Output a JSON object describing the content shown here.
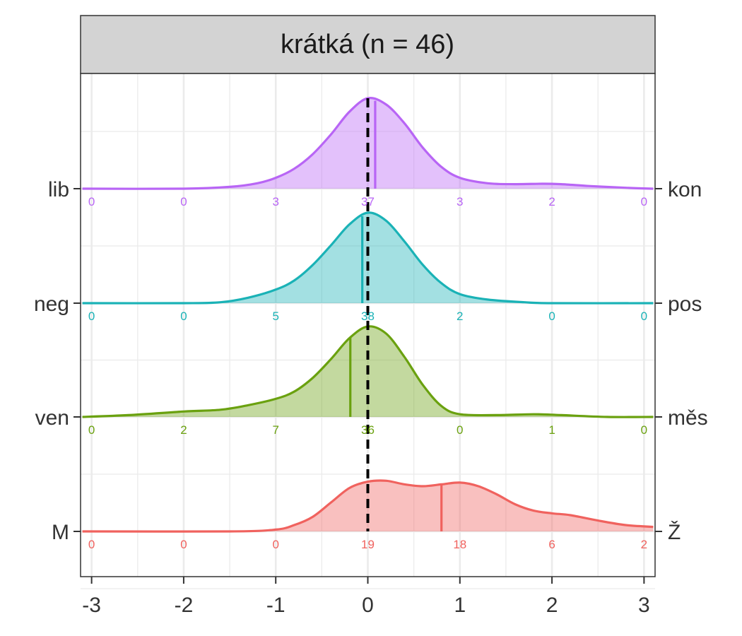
{
  "chart_data": {
    "type": "ridgeline-density",
    "title": "krátká (n = 46)",
    "xlim": [
      -3.12,
      3.12
    ],
    "x_ticks": [
      "-3",
      "-2",
      "-1",
      "0",
      "1",
      "2",
      "3"
    ],
    "x_tick_values": [
      -3,
      -2,
      -1,
      0,
      1,
      2,
      3
    ],
    "reference_line_x": 0,
    "grid": true,
    "count_positions": [
      -3,
      -2,
      -1,
      0,
      1,
      2,
      3
    ],
    "rows": [
      {
        "left_label": "lib",
        "right_label": "kon",
        "color": "#b865f5",
        "mean": 0.08,
        "counts": [
          "0",
          "0",
          "3",
          "37",
          "3",
          "2",
          "0"
        ],
        "density": [
          [
            -3.1,
            0.0
          ],
          [
            -2.0,
            0.0
          ],
          [
            -1.5,
            0.02
          ],
          [
            -1.2,
            0.06
          ],
          [
            -1.0,
            0.12
          ],
          [
            -0.8,
            0.22
          ],
          [
            -0.6,
            0.38
          ],
          [
            -0.4,
            0.6
          ],
          [
            -0.2,
            0.85
          ],
          [
            0.0,
            1.0
          ],
          [
            0.2,
            0.93
          ],
          [
            0.4,
            0.72
          ],
          [
            0.6,
            0.45
          ],
          [
            0.8,
            0.24
          ],
          [
            1.0,
            0.12
          ],
          [
            1.3,
            0.06
          ],
          [
            1.6,
            0.05
          ],
          [
            1.9,
            0.055
          ],
          [
            2.1,
            0.05
          ],
          [
            2.4,
            0.03
          ],
          [
            2.8,
            0.01
          ],
          [
            3.1,
            0.0
          ]
        ]
      },
      {
        "left_label": "neg",
        "right_label": "pos",
        "color": "#1ab2b6",
        "mean": -0.06,
        "counts": [
          "0",
          "0",
          "5",
          "38",
          "2",
          "0",
          "0"
        ],
        "density": [
          [
            -3.1,
            0.0
          ],
          [
            -2.0,
            0.0
          ],
          [
            -1.6,
            0.01
          ],
          [
            -1.3,
            0.06
          ],
          [
            -1.0,
            0.15
          ],
          [
            -0.8,
            0.25
          ],
          [
            -0.6,
            0.42
          ],
          [
            -0.4,
            0.64
          ],
          [
            -0.2,
            0.87
          ],
          [
            0.0,
            1.0
          ],
          [
            0.2,
            0.91
          ],
          [
            0.4,
            0.68
          ],
          [
            0.6,
            0.42
          ],
          [
            0.8,
            0.22
          ],
          [
            1.0,
            0.1
          ],
          [
            1.3,
            0.04
          ],
          [
            1.7,
            0.01
          ],
          [
            2.0,
            0.0
          ],
          [
            3.1,
            0.0
          ]
        ]
      },
      {
        "left_label": "ven",
        "right_label": "měs",
        "color": "#6aa10f",
        "mean": -0.19,
        "counts": [
          "0",
          "2",
          "7",
          "36",
          "0",
          "1",
          "0"
        ],
        "density": [
          [
            -3.1,
            0.0
          ],
          [
            -2.6,
            0.02
          ],
          [
            -2.0,
            0.06
          ],
          [
            -1.6,
            0.08
          ],
          [
            -1.3,
            0.13
          ],
          [
            -1.0,
            0.2
          ],
          [
            -0.8,
            0.28
          ],
          [
            -0.6,
            0.43
          ],
          [
            -0.4,
            0.64
          ],
          [
            -0.2,
            0.87
          ],
          [
            0.0,
            1.0
          ],
          [
            0.2,
            0.92
          ],
          [
            0.4,
            0.66
          ],
          [
            0.6,
            0.35
          ],
          [
            0.8,
            0.12
          ],
          [
            1.0,
            0.03
          ],
          [
            1.4,
            0.02
          ],
          [
            1.8,
            0.03
          ],
          [
            2.1,
            0.02
          ],
          [
            2.6,
            0.0
          ],
          [
            3.1,
            0.0
          ]
        ]
      },
      {
        "left_label": "M",
        "right_label": "Ž",
        "color": "#f0625e",
        "mean": 0.8,
        "counts": [
          "0",
          "0",
          "0",
          "19",
          "18",
          "6",
          "2"
        ],
        "density": [
          [
            -3.1,
            0.0
          ],
          [
            -1.5,
            0.0
          ],
          [
            -1.0,
            0.02
          ],
          [
            -0.8,
            0.07
          ],
          [
            -0.6,
            0.16
          ],
          [
            -0.4,
            0.32
          ],
          [
            -0.2,
            0.48
          ],
          [
            0.0,
            0.55
          ],
          [
            0.2,
            0.56
          ],
          [
            0.4,
            0.52
          ],
          [
            0.6,
            0.5
          ],
          [
            0.8,
            0.52
          ],
          [
            1.0,
            0.54
          ],
          [
            1.2,
            0.5
          ],
          [
            1.4,
            0.41
          ],
          [
            1.6,
            0.3
          ],
          [
            1.8,
            0.23
          ],
          [
            2.0,
            0.2
          ],
          [
            2.2,
            0.18
          ],
          [
            2.5,
            0.12
          ],
          [
            2.8,
            0.07
          ],
          [
            3.1,
            0.05
          ]
        ]
      }
    ]
  }
}
